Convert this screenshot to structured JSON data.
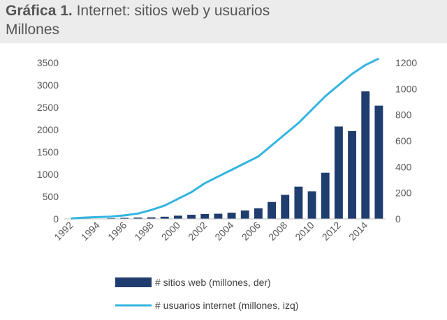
{
  "chart_data": {
    "type": "bar",
    "title_prefix": "Gráfica 1.",
    "title": "Internet: sitios web y usuarios",
    "subtitle": "Millones",
    "x": [
      1992,
      1993,
      1994,
      1995,
      1996,
      1997,
      1998,
      1999,
      2000,
      2001,
      2002,
      2003,
      2004,
      2005,
      2006,
      2007,
      2008,
      2009,
      2010,
      2011,
      2012,
      2013,
      2014,
      2015
    ],
    "x_tick_labels": [
      "1992",
      "1994",
      "1996",
      "1998",
      "2000",
      "2002",
      "2004",
      "2006",
      "2008",
      "2010",
      "2012",
      "2014"
    ],
    "y_left": {
      "ylim": [
        0,
        3500
      ],
      "ticks": [
        "0",
        "500",
        "1000",
        "1500",
        "2000",
        "2500",
        "3000",
        "3500"
      ]
    },
    "y_right": {
      "ylim": [
        0,
        1200
      ],
      "ticks": [
        "0",
        "200",
        "400",
        "600",
        "800",
        "1000",
        "1200"
      ]
    },
    "series": [
      {
        "name": "# sitios web (millones, der)",
        "kind": "bar",
        "axis": "right",
        "color": "#1f3d6e",
        "values": [
          0,
          0,
          0.5,
          5,
          8,
          10,
          12,
          17,
          25,
          32,
          38,
          40,
          48,
          65,
          82,
          130,
          185,
          248,
          212,
          355,
          710,
          675,
          980,
          870
        ]
      },
      {
        "name": "# usuarios internet (millones, izq)",
        "kind": "line",
        "axis": "left",
        "color": "#33b4e0",
        "values": [
          10,
          30,
          40,
          50,
          80,
          120,
          200,
          300,
          450,
          600,
          800,
          950,
          1100,
          1250,
          1400,
          1650,
          1900,
          2150,
          2450,
          2750,
          3000,
          3250,
          3450,
          3700
        ]
      }
    ],
    "legend_placement": "bottom",
    "grid": false
  }
}
